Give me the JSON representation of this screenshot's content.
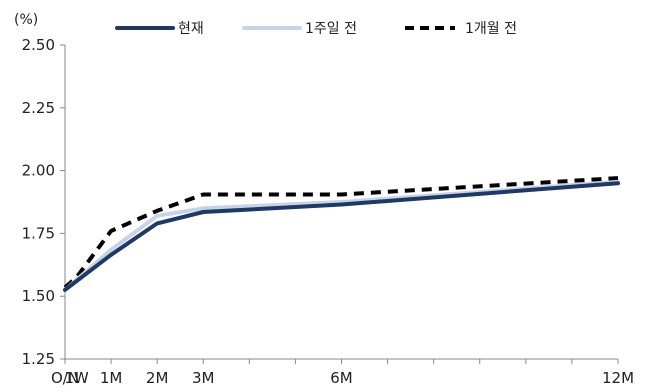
{
  "chart_data": {
    "type": "line",
    "unit_label": "(%)",
    "x": [
      "O/N",
      "1W",
      "1M",
      "2M",
      "3M",
      "6M",
      "12M"
    ],
    "x_positions_months": [
      0,
      0.25,
      1,
      2,
      3,
      6,
      12
    ],
    "ylim": [
      1.25,
      2.5
    ],
    "yticks": [
      "1.25",
      "1.50",
      "1.75",
      "2.00",
      "2.25",
      "2.50"
    ],
    "series": [
      {
        "name": "현재",
        "values": [
          1.525,
          1.56,
          1.665,
          1.79,
          1.835,
          1.865,
          1.95
        ],
        "color": "#1f3864",
        "style": "solid"
      },
      {
        "name": "1주일 전",
        "values": [
          1.525,
          1.565,
          1.685,
          1.82,
          1.85,
          1.875,
          1.955
        ],
        "color": "#c6d3e8",
        "style": "solid"
      },
      {
        "name": "1개월 전",
        "values": [
          1.535,
          1.575,
          1.76,
          1.84,
          1.905,
          1.905,
          1.97
        ],
        "color": "#000000",
        "style": "dashed"
      }
    ],
    "grid": false,
    "legend_position": "top"
  }
}
